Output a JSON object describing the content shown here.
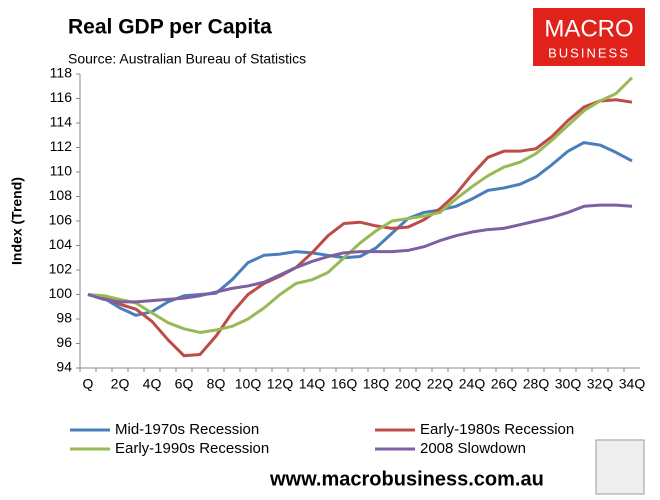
{
  "chart_data": {
    "type": "line",
    "title": "Real GDP per Capita",
    "subtitle": "Source: Australian Bureau of Statistics",
    "y_label": "Index (Trend)",
    "categories": [
      "Q",
      null,
      "2Q",
      null,
      "4Q",
      null,
      "6Q",
      null,
      "8Q",
      null,
      "10Q",
      null,
      "12Q",
      null,
      "14Q",
      null,
      "16Q",
      null,
      "18Q",
      null,
      "20Q",
      null,
      "22Q",
      null,
      "24Q",
      null,
      "26Q",
      null,
      "28Q",
      null,
      "30Q",
      null,
      "32Q",
      null,
      "34Q"
    ],
    "series": [
      {
        "name": "Mid-1970s Recession",
        "color": "#4a7ebb",
        "values": [
          100,
          99.7,
          98.9,
          98.3,
          98.6,
          99.4,
          99.9,
          100.0,
          100.1,
          101.2,
          102.6,
          103.2,
          103.3,
          103.5,
          103.4,
          103.2,
          103.0,
          103.1,
          103.8,
          105.0,
          106.2,
          106.7,
          106.9,
          107.2,
          107.8,
          108.5,
          108.7,
          109.0,
          109.6,
          110.6,
          111.7,
          112.4,
          112.2,
          111.6,
          110.9
        ]
      },
      {
        "name": "Early-1980s Recession",
        "color": "#be4b48",
        "values": [
          100,
          99.8,
          99.2,
          98.8,
          97.8,
          96.3,
          95.0,
          95.1,
          96.6,
          98.5,
          100.0,
          100.9,
          101.5,
          102.2,
          103.4,
          104.8,
          105.8,
          105.9,
          105.6,
          105.4,
          105.5,
          106.1,
          107.0,
          108.2,
          109.8,
          111.2,
          111.7,
          111.7,
          111.9,
          112.9,
          114.2,
          115.3,
          115.8,
          115.9,
          115.7
        ]
      },
      {
        "name": "Early-1990s Recession",
        "color": "#98b954",
        "values": [
          100,
          99.9,
          99.6,
          99.3,
          98.5,
          97.7,
          97.2,
          96.9,
          97.1,
          97.4,
          98.0,
          98.9,
          100.0,
          100.9,
          101.2,
          101.8,
          103.0,
          104.2,
          105.2,
          106.0,
          106.2,
          106.4,
          106.7,
          107.8,
          108.8,
          109.7,
          110.4,
          110.8,
          111.5,
          112.6,
          113.8,
          115.0,
          115.8,
          116.4,
          117.7
        ]
      },
      {
        "name": "2008 Slowdown",
        "color": "#7d60a0",
        "values": [
          100,
          99.6,
          99.4,
          99.4,
          99.5,
          99.6,
          99.7,
          99.9,
          100.2,
          100.5,
          100.7,
          101.0,
          101.6,
          102.2,
          102.7,
          103.1,
          103.4,
          103.5,
          103.5,
          103.5,
          103.6,
          103.9,
          104.4,
          104.8,
          105.1,
          105.3,
          105.4,
          105.7,
          106.0,
          106.3,
          106.7,
          107.2,
          107.3,
          107.3,
          107.2
        ]
      }
    ],
    "ylim": [
      94,
      118
    ],
    "yticks": [
      94,
      96,
      98,
      100,
      102,
      104,
      106,
      108,
      110,
      112,
      114,
      116,
      118
    ],
    "grid": false,
    "legend": "bottom"
  },
  "brand": {
    "logo_top": "MACRO",
    "logo_bottom": "BUSINESS",
    "url": "www.macrobusiness.com.au"
  }
}
